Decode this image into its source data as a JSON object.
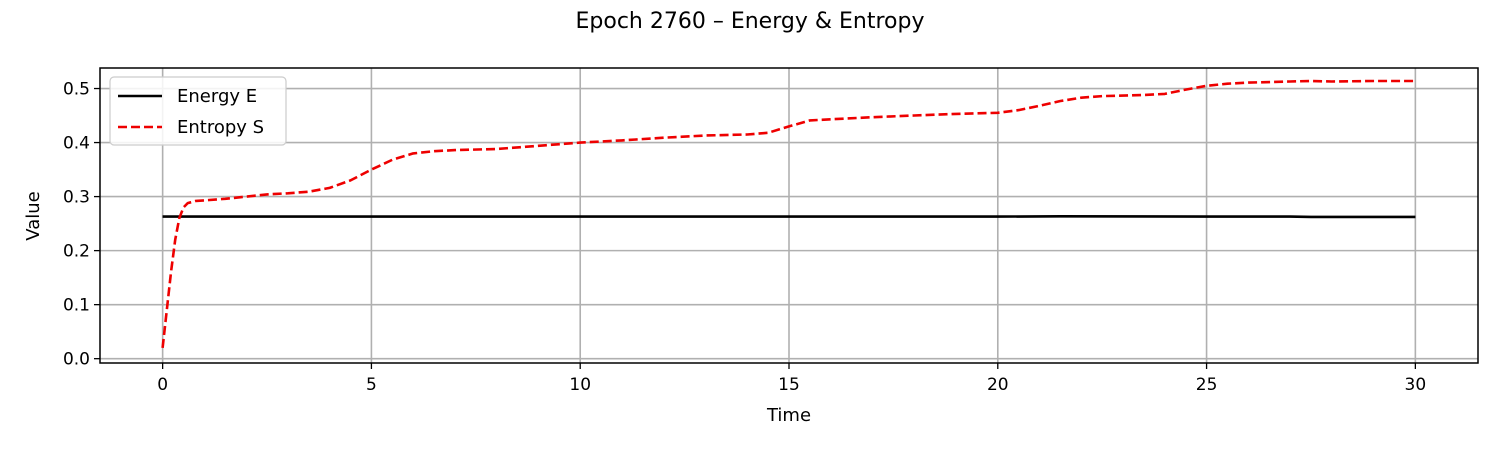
{
  "chart_data": {
    "type": "line",
    "title": "Epoch 2760 – Energy & Entropy",
    "xlabel": "Time",
    "ylabel": "Value",
    "xlim": [
      -1.5,
      31.5
    ],
    "ylim": [
      -0.008,
      0.538
    ],
    "xticks": [
      0,
      5,
      10,
      15,
      20,
      25,
      30
    ],
    "yticks": [
      0.0,
      0.1,
      0.2,
      0.3,
      0.4,
      0.5
    ],
    "grid": true,
    "legend_position": "top-left",
    "series": [
      {
        "name": "Energy E",
        "color": "#000000",
        "dash": "solid",
        "x": [
          0,
          5,
          10,
          15,
          20,
          21.5,
          25,
          27,
          27.5,
          30
        ],
        "y": [
          0.263,
          0.263,
          0.263,
          0.263,
          0.263,
          0.2635,
          0.263,
          0.263,
          0.2625,
          0.2625
        ]
      },
      {
        "name": "Entropy S",
        "color": "#ee0000",
        "dash": "dashed",
        "x": [
          0,
          0.1,
          0.2,
          0.3,
          0.4,
          0.5,
          0.6,
          0.8,
          1.0,
          1.5,
          2.0,
          2.5,
          3.0,
          3.5,
          4.0,
          4.5,
          5.0,
          5.5,
          6.0,
          6.5,
          7.0,
          8.0,
          9.0,
          10.0,
          11.0,
          12.0,
          13.0,
          14.0,
          14.5,
          15.0,
          15.5,
          16.0,
          17.0,
          18.0,
          19.0,
          20.0,
          20.5,
          21.0,
          21.5,
          22.0,
          22.5,
          23.0,
          23.5,
          24.0,
          24.5,
          25.0,
          25.5,
          26.0,
          27.0,
          27.5,
          28.0,
          29.0,
          30.0
        ],
        "y": [
          0.02,
          0.09,
          0.16,
          0.22,
          0.26,
          0.28,
          0.288,
          0.292,
          0.293,
          0.296,
          0.3,
          0.304,
          0.306,
          0.309,
          0.316,
          0.33,
          0.35,
          0.368,
          0.38,
          0.384,
          0.386,
          0.388,
          0.394,
          0.4,
          0.404,
          0.409,
          0.413,
          0.415,
          0.418,
          0.43,
          0.441,
          0.443,
          0.447,
          0.45,
          0.453,
          0.455,
          0.46,
          0.468,
          0.477,
          0.483,
          0.486,
          0.487,
          0.488,
          0.49,
          0.498,
          0.505,
          0.509,
          0.511,
          0.513,
          0.514,
          0.513,
          0.514,
          0.514
        ]
      }
    ]
  }
}
